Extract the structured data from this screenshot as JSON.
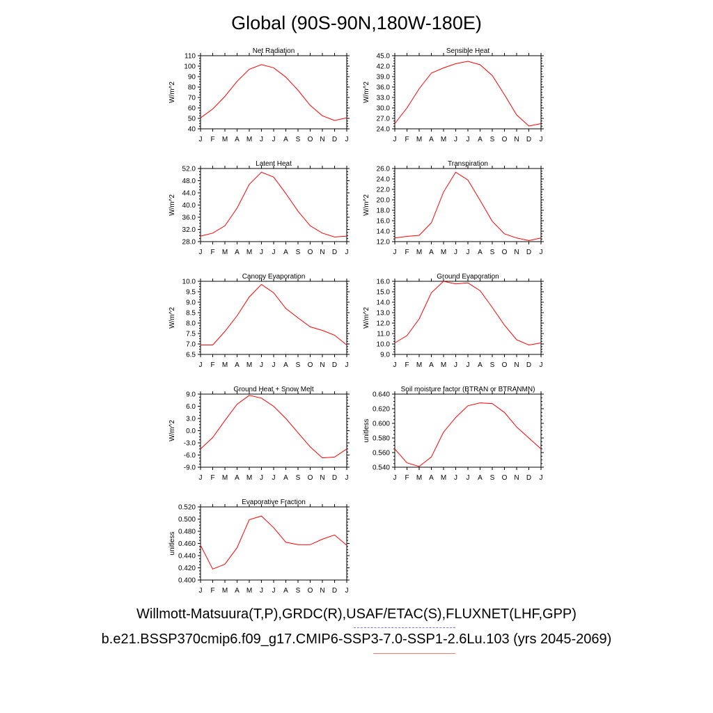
{
  "title": "Global (90S-90N,180W-180E)",
  "captions": {
    "line1": "Willmott-Matsuura(T,P),GRDC(R),USAF/ETAC(S),FLUXNET(LHF,GPP)",
    "line2": "b.e21.BSSP370cmip6.f09_g17.CMIP6-SSP3-7.0-SSP1-2.6Lu.103 (yrs 2045-2069)"
  },
  "colors": {
    "series": "#ff0000",
    "axis": "#000000",
    "dashed_underline": "#7777ee",
    "solid_underline": "#ee7777"
  },
  "chart_data": [
    {
      "type": "line",
      "title": "Net Radiation",
      "xlabel": "",
      "ylabel": "W/m^2",
      "categories": [
        "J",
        "F",
        "M",
        "A",
        "M",
        "J",
        "J",
        "A",
        "S",
        "O",
        "N",
        "D",
        "J"
      ],
      "values": [
        50.5,
        59,
        71,
        85.5,
        97,
        101.5,
        98.5,
        89.5,
        77,
        62.5,
        52.5,
        48,
        50.5
      ],
      "ylim": [
        40,
        110
      ],
      "yticks": [
        "40",
        "50",
        "60",
        "70",
        "80",
        "90",
        "100",
        "110"
      ],
      "grid": false
    },
    {
      "type": "line",
      "title": "Sensible Heat",
      "xlabel": "",
      "ylabel": "W/m^2",
      "categories": [
        "J",
        "F",
        "M",
        "A",
        "M",
        "J",
        "J",
        "A",
        "S",
        "O",
        "N",
        "D",
        "J"
      ],
      "values": [
        25.5,
        30,
        35.5,
        40,
        41.5,
        42.7,
        43.4,
        42.4,
        39.3,
        33.8,
        28,
        24.8,
        25.5
      ],
      "ylim": [
        24,
        45
      ],
      "yticks": [
        "24.0",
        "27.0",
        "30.0",
        "33.0",
        "36.0",
        "39.0",
        "42.0",
        "45.0"
      ],
      "grid": false
    },
    {
      "type": "line",
      "title": "Latent Heat",
      "xlabel": "",
      "ylabel": "W/m^2",
      "categories": [
        "J",
        "F",
        "M",
        "A",
        "M",
        "J",
        "J",
        "A",
        "S",
        "O",
        "N",
        "D",
        "J"
      ],
      "values": [
        29.8,
        30.8,
        33.2,
        39,
        46.8,
        50.8,
        49.2,
        43.8,
        38,
        33.2,
        30.8,
        29.5,
        29.8
      ],
      "ylim": [
        28,
        52
      ],
      "yticks": [
        "28.0",
        "32.0",
        "36.0",
        "40.0",
        "44.0",
        "48.0",
        "52.0"
      ],
      "grid": false
    },
    {
      "type": "line",
      "title": "Transpiration",
      "xlabel": "",
      "ylabel": "W/m^2",
      "categories": [
        "J",
        "F",
        "M",
        "A",
        "M",
        "J",
        "J",
        "A",
        "S",
        "O",
        "N",
        "D",
        "J"
      ],
      "values": [
        12.7,
        13,
        13.2,
        15.6,
        21.5,
        25.3,
        23.8,
        19.9,
        15.9,
        13.5,
        12.7,
        12.2,
        12.7
      ],
      "ylim": [
        12,
        26
      ],
      "yticks": [
        "12.0",
        "14.0",
        "16.0",
        "18.0",
        "20.0",
        "22.0",
        "24.0",
        "26.0"
      ],
      "grid": false
    },
    {
      "type": "line",
      "title": "Canopy Evaporation",
      "xlabel": "",
      "ylabel": "W/m^2",
      "categories": [
        "J",
        "F",
        "M",
        "A",
        "M",
        "J",
        "J",
        "A",
        "S",
        "O",
        "N",
        "D",
        "J"
      ],
      "values": [
        6.95,
        6.95,
        7.6,
        8.35,
        9.25,
        9.85,
        9.45,
        8.7,
        8.25,
        7.82,
        7.65,
        7.42,
        6.95
      ],
      "ylim": [
        6.5,
        10
      ],
      "yticks": [
        "6.5",
        "7.0",
        "7.5",
        "8.0",
        "8.5",
        "9.0",
        "9.5",
        "10.0"
      ],
      "grid": false
    },
    {
      "type": "line",
      "title": "Ground Evaporation",
      "xlabel": "",
      "ylabel": "W/m^2",
      "categories": [
        "J",
        "F",
        "M",
        "A",
        "M",
        "J",
        "J",
        "A",
        "S",
        "O",
        "N",
        "D",
        "J"
      ],
      "values": [
        10.1,
        10.8,
        12.4,
        14.9,
        16,
        15.75,
        15.85,
        15.1,
        13.5,
        11.8,
        10.4,
        9.9,
        10.1
      ],
      "ylim": [
        9,
        16
      ],
      "yticks": [
        "9.0",
        "10.0",
        "11.0",
        "12.0",
        "13.0",
        "14.0",
        "15.0",
        "16.0"
      ],
      "grid": false
    },
    {
      "type": "line",
      "title": "Ground Heat + Snow Melt",
      "xlabel": "",
      "ylabel": "W/m^2",
      "categories": [
        "J",
        "F",
        "M",
        "A",
        "M",
        "J",
        "J",
        "A",
        "S",
        "O",
        "N",
        "D",
        "J"
      ],
      "values": [
        -4.5,
        -1.7,
        2.5,
        6.5,
        8.7,
        8,
        6,
        3,
        -0.5,
        -4,
        -6.7,
        -6.5,
        -4.5
      ],
      "ylim": [
        -9,
        9
      ],
      "yticks": [
        "-9.0",
        "-6.0",
        "-3.0",
        "0.0",
        "3.0",
        "6.0",
        "9.0"
      ],
      "grid": false
    },
    {
      "type": "line",
      "title": "Soil moisture factor (BTRAN or BTRANMN)",
      "xlabel": "",
      "ylabel": "unitless",
      "categories": [
        "J",
        "F",
        "M",
        "A",
        "M",
        "J",
        "J",
        "A",
        "S",
        "O",
        "N",
        "D",
        "J"
      ],
      "values": [
        0.565,
        0.546,
        0.541,
        0.554,
        0.588,
        0.608,
        0.624,
        0.628,
        0.627,
        0.615,
        0.595,
        0.58,
        0.565
      ],
      "ylim": [
        0.54,
        0.64
      ],
      "yticks": [
        "0.540",
        "0.560",
        "0.580",
        "0.600",
        "0.620",
        "0.640"
      ],
      "grid": false
    },
    {
      "type": "line",
      "title": "Evaporative Fraction",
      "xlabel": "",
      "ylabel": "unitless",
      "categories": [
        "J",
        "F",
        "M",
        "A",
        "M",
        "J",
        "J",
        "A",
        "S",
        "O",
        "N",
        "D",
        "J"
      ],
      "values": [
        0.457,
        0.418,
        0.426,
        0.453,
        0.499,
        0.505,
        0.486,
        0.462,
        0.458,
        0.458,
        0.467,
        0.474,
        0.457
      ],
      "ylim": [
        0.4,
        0.52
      ],
      "yticks": [
        "0.400",
        "0.420",
        "0.440",
        "0.460",
        "0.480",
        "0.500",
        "0.520"
      ],
      "grid": false
    }
  ]
}
